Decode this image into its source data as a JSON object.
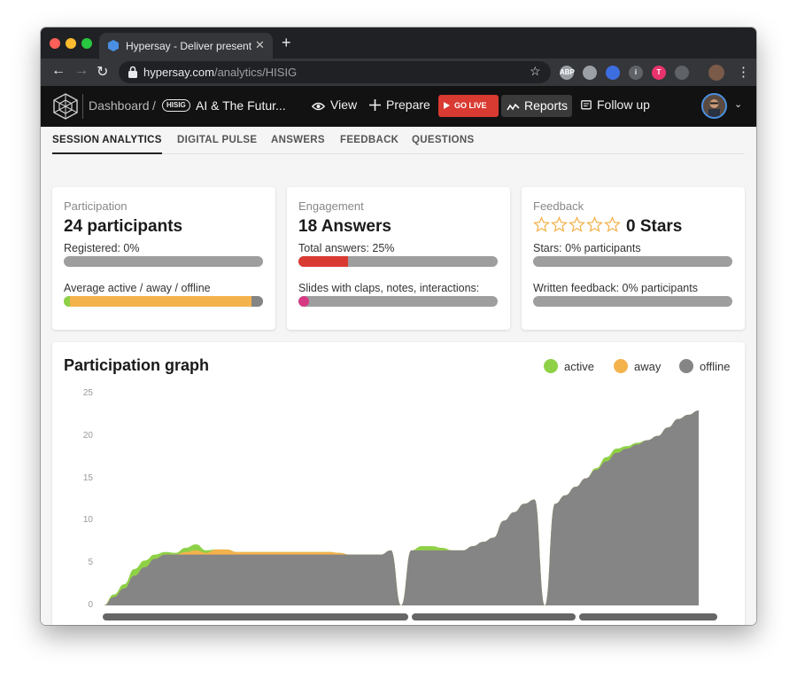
{
  "browser": {
    "tab_title": "Hypersay - Deliver presentations",
    "tab_close": "✕",
    "new_tab": "+",
    "url_host": "hypersay.com",
    "url_path": "/analytics/HISIG",
    "nav_back": "←",
    "nav_forward": "→",
    "nav_reload": "↻",
    "bookmark_star": "☆",
    "menu": "⋮",
    "extensions": [
      {
        "name": "abp-icon",
        "label": "ABP",
        "color": "#9aa0a6"
      },
      {
        "name": "pocket-icon",
        "label": "",
        "color": "#9aa0a6"
      },
      {
        "name": "bitwarden-icon",
        "label": "",
        "color": "#3c6ee0"
      },
      {
        "name": "info-icon",
        "label": "i",
        "color": "#5f6368"
      },
      {
        "name": "t-icon",
        "label": "T",
        "color": "#e8336c"
      },
      {
        "name": "cast-icon",
        "label": "",
        "color": "#5f6368"
      }
    ]
  },
  "app": {
    "breadcrumb_root": "Dashboard",
    "breadcrumb_sep": "/",
    "session_tag": "HISIG",
    "presentation_title": "AI & The Futur...",
    "nav": {
      "view": "View",
      "prepare": "Prepare",
      "go_live": "GO LIVE",
      "reports": "Reports",
      "follow_up": "Follow up"
    },
    "user_chevron": "⌄"
  },
  "tabs": [
    "SESSION ANALYTICS",
    "DIGITAL PULSE",
    "ANSWERS",
    "FEEDBACK",
    "QUESTIONS"
  ],
  "active_tab": "SESSION ANALYTICS",
  "cards": {
    "participation": {
      "label": "Participation",
      "value": "24 participants",
      "registered_label": "Registered: 0%",
      "registered_fraction": 0,
      "activity_label": "Average active / away / offline",
      "active_fraction": 0.03,
      "away_fraction": 0.91,
      "offline_fraction": 0.06
    },
    "engagement": {
      "label": "Engagement",
      "value": "18 Answers",
      "total_label": "Total answers: 25%",
      "total_fraction": 0.25,
      "slides_label": "Slides with claps, notes, interactions:",
      "slides_fraction": 0.05
    },
    "feedback": {
      "label": "Feedback",
      "value": "0 Stars",
      "star_count": 5,
      "stars_filled": 0,
      "stars_label": "Stars: 0% participants",
      "stars_fraction": 0,
      "written_label": "Written feedback: 0% participants",
      "written_fraction": 0
    }
  },
  "colors": {
    "active": "#8ed147",
    "away": "#f4b24d",
    "offline": "#858585",
    "go_live": "#d93a32",
    "engagement_bar": "#d93a32",
    "slides_bar": "#d63a84",
    "star": "#f4b24d"
  },
  "graph": {
    "title": "Participation graph",
    "legend": [
      {
        "key": "active",
        "label": "active"
      },
      {
        "key": "away",
        "label": "away"
      },
      {
        "key": "offline",
        "label": "offline"
      }
    ]
  },
  "chart_data": {
    "type": "area",
    "title": "Participation graph",
    "xlabel": "",
    "ylabel": "",
    "ylim": [
      0,
      25
    ],
    "yticks": [
      0,
      5,
      10,
      15,
      20,
      25
    ],
    "grid": false,
    "legend_position": "top-right",
    "x": [
      0,
      1,
      2,
      3,
      4,
      5,
      6,
      7,
      8,
      9,
      10,
      11,
      12,
      13,
      14,
      15,
      16,
      17,
      18,
      19,
      20,
      21,
      22,
      23,
      24,
      25,
      26,
      27,
      28,
      29,
      30,
      31,
      32,
      33,
      34,
      35,
      36,
      37,
      38,
      39,
      40,
      41,
      42,
      43,
      44,
      45,
      46,
      47,
      48,
      49,
      50,
      51,
      52,
      53,
      54,
      55,
      56,
      57,
      58
    ],
    "series": [
      {
        "name": "offline",
        "values": [
          0,
          1,
          2,
          3.5,
          4.5,
          5.5,
          6,
          6,
          6,
          6,
          6,
          6,
          6,
          6,
          6,
          6,
          6,
          6,
          6,
          6,
          6,
          6,
          6,
          6,
          6,
          6,
          6,
          6,
          6.5,
          0,
          6.5,
          6.5,
          6.5,
          6.5,
          6.5,
          6.5,
          7,
          7.5,
          8,
          10,
          11,
          12,
          12.5,
          0,
          12,
          13,
          14,
          15,
          16,
          17,
          18,
          18.5,
          19,
          19.5,
          20,
          21,
          22,
          22.5,
          23
        ]
      },
      {
        "name": "active",
        "values": [
          0,
          0.3,
          0.5,
          0.8,
          0.8,
          0.5,
          0.3,
          0.2,
          0.5,
          0.7,
          0.3,
          0,
          0,
          0,
          0,
          0,
          0,
          0,
          0,
          0,
          0,
          0,
          0,
          0,
          0,
          0,
          0,
          0,
          0,
          0,
          0,
          0.5,
          0.5,
          0.3,
          0,
          0,
          0,
          0,
          0,
          0,
          0,
          0,
          0,
          0,
          0,
          0,
          0,
          0,
          0.2,
          0.5,
          0.5,
          0.3,
          0.2,
          0,
          0,
          0,
          0,
          0,
          0
        ]
      },
      {
        "name": "away",
        "values": [
          0,
          0,
          0,
          0,
          0,
          0,
          0,
          0,
          0.3,
          0.5,
          0.2,
          0.6,
          0.6,
          0.3,
          0.3,
          0.3,
          0.3,
          0.3,
          0.3,
          0.3,
          0.3,
          0.3,
          0.3,
          0.2,
          0,
          0,
          0,
          0,
          0,
          0,
          0,
          0,
          0,
          0,
          0,
          0,
          0,
          0,
          0,
          0,
          0,
          0,
          0,
          0,
          0,
          0,
          0,
          0,
          0,
          0,
          0,
          0,
          0,
          0,
          0,
          0,
          0,
          0,
          0
        ]
      }
    ],
    "timeline_segments": [
      {
        "start": 0,
        "end": 29.5
      },
      {
        "start": 29.5,
        "end": 45.5
      },
      {
        "start": 45.5,
        "end": 59
      }
    ]
  }
}
